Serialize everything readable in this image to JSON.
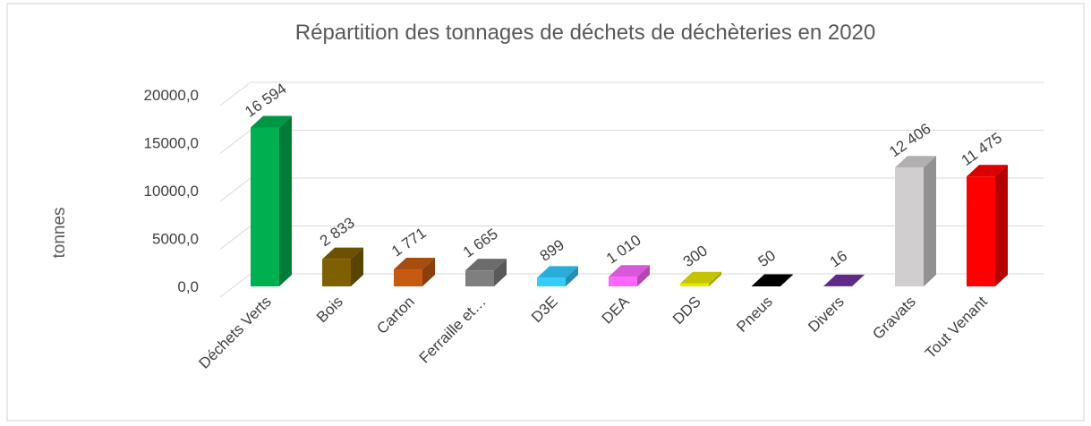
{
  "chart_data": {
    "type": "bar3d",
    "title": "Répartition des tonnages de déchets de déchèteries en 2020",
    "y_label": "tonnes",
    "categories": [
      "Déchets Verts",
      "Bois",
      "Carton",
      "Ferraille et…",
      "D3E",
      "DEA",
      "DDS",
      "Pneus",
      "Divers",
      "Gravats",
      "Tout Venant"
    ],
    "values": [
      16594,
      2833,
      1771,
      1665,
      899,
      1010,
      300,
      50,
      16,
      12406,
      11475
    ],
    "value_labels": [
      "16 594",
      "2 833",
      "1 771",
      "1 665",
      "899",
      "1 010",
      "300",
      "50",
      "16",
      "12 406",
      "11 475"
    ],
    "colors": [
      "#00b050",
      "#7f6000",
      "#c55a11",
      "#7f7f7f",
      "#33ccff",
      "#ff66ff",
      "#e6e600",
      "#000000",
      "#7030a0",
      "#d0cece",
      "#ff0000"
    ],
    "ylim": [
      0,
      20000
    ],
    "yticks": [
      {
        "value": 0,
        "label": "0,0"
      },
      {
        "value": 5000,
        "label": "5000,0"
      },
      {
        "value": 10000,
        "label": "10000,0"
      },
      {
        "value": 15000,
        "label": "15000,0"
      },
      {
        "value": 20000,
        "label": "20000,0"
      }
    ],
    "grid": true
  }
}
